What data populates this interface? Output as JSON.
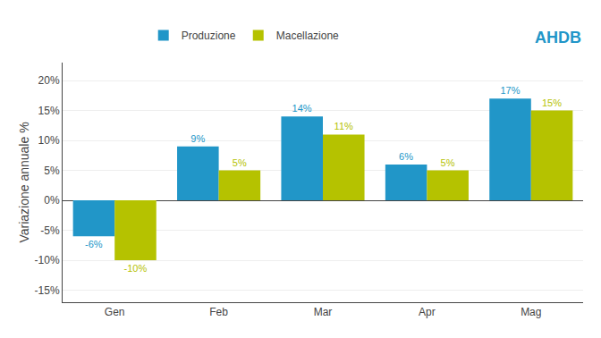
{
  "chart_data": {
    "type": "bar",
    "ylabel": "Variazione annuale %",
    "categories": [
      "Gen",
      "Feb",
      "Mar",
      "Apr",
      "Mag"
    ],
    "series": [
      {
        "name": "Produzione",
        "color": "#2196C8",
        "values": [
          -6,
          9,
          14,
          6,
          17
        ],
        "value_labels": [
          "-6%",
          "9%",
          "14%",
          "6%",
          "17%"
        ]
      },
      {
        "name": "Macellazione",
        "color": "#B5C200",
        "values": [
          -10,
          5,
          11,
          5,
          15
        ],
        "value_labels": [
          "-10%",
          "5%",
          "11%",
          "5%",
          "15%"
        ]
      }
    ],
    "ylim": [
      -17,
      23
    ],
    "yticks": [
      {
        "value": -15,
        "label": "-15%"
      },
      {
        "value": -10,
        "label": "-10%"
      },
      {
        "value": -5,
        "label": "-5%"
      },
      {
        "value": 0,
        "label": "0%"
      },
      {
        "value": 5,
        "label": "5%"
      },
      {
        "value": 10,
        "label": "10%"
      },
      {
        "value": 15,
        "label": "15%"
      },
      {
        "value": 20,
        "label": "20%"
      }
    ],
    "grid": true,
    "legend": "top",
    "data_labels": true,
    "annotations": [
      {
        "text": "AHDB",
        "color": "#2196C8"
      }
    ]
  }
}
